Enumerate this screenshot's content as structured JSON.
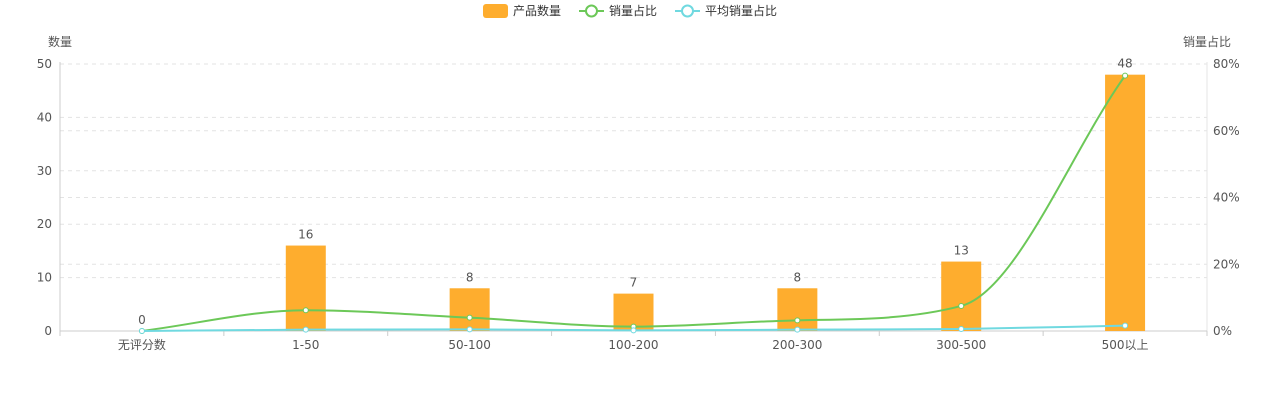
{
  "chart_data": {
    "type": "bar",
    "categories": [
      "无评分数",
      "1-50",
      "50-100",
      "100-200",
      "200-300",
      "300-500",
      "500以上"
    ],
    "series": [
      {
        "name": "产品数量",
        "kind": "bar",
        "axis": "left",
        "values": [
          0,
          16,
          8,
          7,
          8,
          13,
          48
        ],
        "color": "#FEAD2E"
      },
      {
        "name": "销量占比",
        "kind": "line",
        "axis": "right",
        "values": [
          0.0,
          6.2,
          4.0,
          1.3,
          3.2,
          7.5,
          76.5
        ],
        "color": "#6CC858"
      },
      {
        "name": "平均销量占比",
        "kind": "line",
        "axis": "right",
        "values": [
          0.0,
          0.4,
          0.5,
          0.2,
          0.4,
          0.6,
          1.6
        ],
        "color": "#70D9E0"
      }
    ],
    "y_left": {
      "label": "数量",
      "ylim": [
        0,
        50
      ],
      "ticks": [
        "0",
        "10",
        "20",
        "30",
        "40",
        "50"
      ]
    },
    "y_right": {
      "label": "销量占比",
      "ylim": [
        0,
        80
      ],
      "ticks": [
        "0%",
        "20%",
        "40%",
        "60%",
        "80%"
      ]
    },
    "bar_labels": [
      "0",
      "16",
      "8",
      "7",
      "8",
      "13",
      "48"
    ],
    "legend_position": "top-center",
    "grid": true
  }
}
